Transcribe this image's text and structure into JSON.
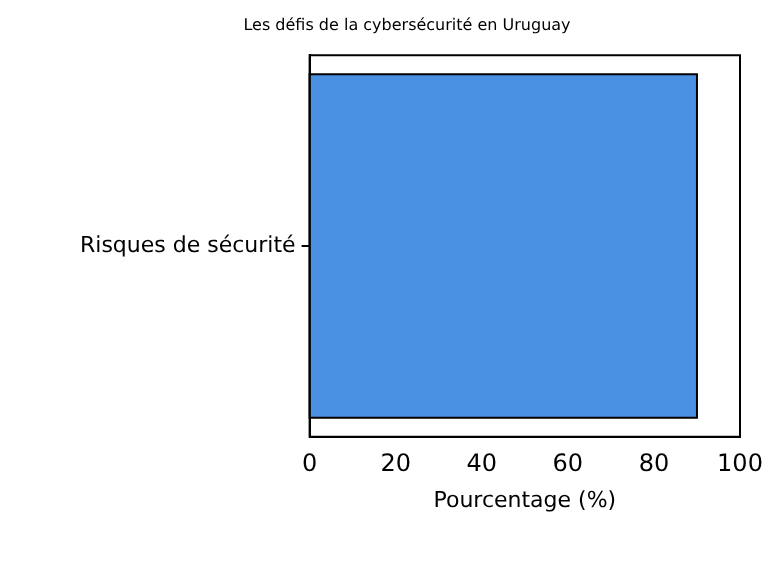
{
  "chart_data": {
    "type": "bar",
    "orientation": "horizontal",
    "title": "Les défis de la cybersécurité en Uruguay",
    "xlabel": "Pourcentage (%)",
    "categories": [
      "Risques de sécurité"
    ],
    "series": [
      {
        "color": "#4a90e2",
        "values": [
          90
        ]
      }
    ],
    "xlim": [
      0,
      100
    ],
    "xticks": [
      0,
      20,
      40,
      60,
      80,
      100
    ],
    "grid": false,
    "legend": false
  }
}
